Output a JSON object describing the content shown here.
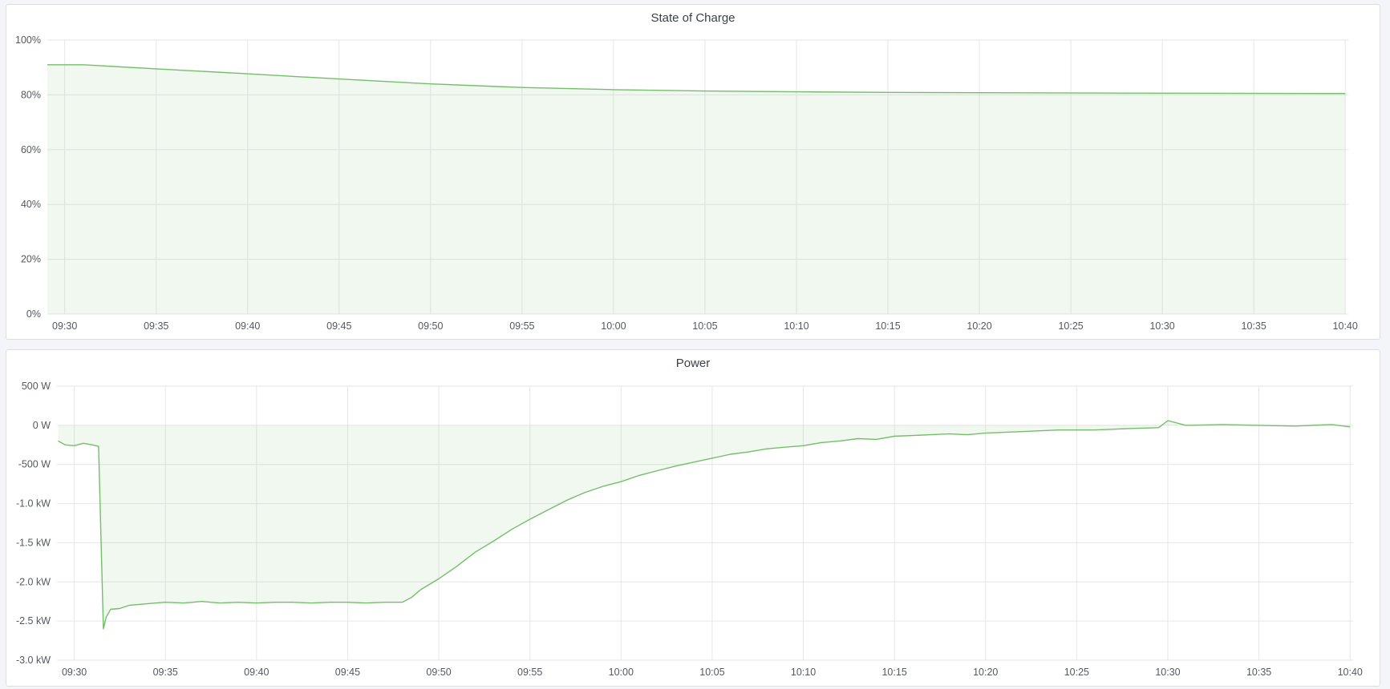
{
  "colors": {
    "line": "#73bf69",
    "fill": "#73bf69",
    "grid": "#e6e6e8",
    "background": "#f4f5f8"
  },
  "chart_data": [
    {
      "type": "area",
      "title": "State of Charge",
      "xlim": [
        "09:29:03",
        "10:40:10"
      ],
      "ylim": [
        0,
        100
      ],
      "xticks": [
        "09:30",
        "09:35",
        "09:40",
        "09:45",
        "09:50",
        "09:55",
        "10:00",
        "10:05",
        "10:10",
        "10:15",
        "10:20",
        "10:25",
        "10:30",
        "10:35",
        "10:40"
      ],
      "yticks": [
        {
          "v": 0,
          "label": "0%"
        },
        {
          "v": 20,
          "label": "20%"
        },
        {
          "v": 40,
          "label": "40%"
        },
        {
          "v": 60,
          "label": "60%"
        },
        {
          "v": 80,
          "label": "80%"
        },
        {
          "v": 100,
          "label": "100%"
        }
      ],
      "grid": true,
      "series": [
        {
          "x": [
            "09:29:03",
            "09:31:00",
            "09:35:00",
            "09:40:00",
            "09:45:00",
            "09:50:00",
            "09:55:00",
            "10:00:00",
            "10:05:00",
            "10:10:00",
            "10:15:00",
            "10:20:00",
            "10:30:00",
            "10:40:00"
          ],
          "y": [
            91,
            91,
            89.5,
            87.7,
            85.8,
            84.0,
            82.7,
            81.9,
            81.4,
            81.1,
            80.9,
            80.8,
            80.6,
            80.5
          ]
        }
      ]
    },
    {
      "type": "area",
      "title": "Power",
      "xlim": [
        "09:29:03",
        "10:40:10"
      ],
      "ylim": [
        -3000,
        500
      ],
      "xticks": [
        "09:30",
        "09:35",
        "09:40",
        "09:45",
        "09:50",
        "09:55",
        "10:00",
        "10:05",
        "10:10",
        "10:15",
        "10:20",
        "10:25",
        "10:30",
        "10:35",
        "10:40"
      ],
      "yticks": [
        {
          "v": 500,
          "label": "500 W"
        },
        {
          "v": 0,
          "label": "0 W"
        },
        {
          "v": -500,
          "label": "-500 W"
        },
        {
          "v": -1000,
          "label": "-1.0 kW"
        },
        {
          "v": -1500,
          "label": "-1.5 kW"
        },
        {
          "v": -2000,
          "label": "-2.0 kW"
        },
        {
          "v": -2500,
          "label": "-2.5 kW"
        },
        {
          "v": -3000,
          "label": "-3.0 kW"
        }
      ],
      "grid": true,
      "series": [
        {
          "x": [
            "09:29:07",
            "09:29:30",
            "09:30:00",
            "09:30:30",
            "09:31:00",
            "09:31:20",
            "09:31:36",
            "09:31:45",
            "09:32:00",
            "09:32:30",
            "09:33:00",
            "09:34:00",
            "09:35:00",
            "09:36:00",
            "09:37:00",
            "09:38:00",
            "09:39:00",
            "09:40:00",
            "09:41:00",
            "09:42:00",
            "09:43:00",
            "09:44:00",
            "09:45:00",
            "09:46:00",
            "09:47:00",
            "09:48:00",
            "09:48:30",
            "09:49:00",
            "09:50:00",
            "09:51:00",
            "09:52:00",
            "09:53:00",
            "09:54:00",
            "09:55:00",
            "09:56:00",
            "09:57:00",
            "09:58:00",
            "09:59:00",
            "10:00:00",
            "10:01:00",
            "10:02:00",
            "10:03:00",
            "10:04:00",
            "10:05:00",
            "10:06:00",
            "10:07:00",
            "10:08:00",
            "10:09:00",
            "10:10:00",
            "10:11:00",
            "10:12:00",
            "10:13:00",
            "10:14:00",
            "10:15:00",
            "10:16:00",
            "10:17:00",
            "10:18:00",
            "10:19:00",
            "10:20:00",
            "10:22:00",
            "10:24:00",
            "10:26:00",
            "10:28:00",
            "10:29:30",
            "10:30:00",
            "10:31:00",
            "10:33:00",
            "10:35:00",
            "10:37:00",
            "10:39:00",
            "10:40:00"
          ],
          "y": [
            -200,
            -250,
            -260,
            -230,
            -250,
            -270,
            -2600,
            -2450,
            -2350,
            -2340,
            -2300,
            -2280,
            -2260,
            -2270,
            -2250,
            -2270,
            -2260,
            -2270,
            -2260,
            -2260,
            -2270,
            -2260,
            -2260,
            -2270,
            -2260,
            -2260,
            -2200,
            -2100,
            -1960,
            -1800,
            -1620,
            -1480,
            -1330,
            -1200,
            -1080,
            -960,
            -860,
            -780,
            -720,
            -640,
            -580,
            -520,
            -470,
            -420,
            -370,
            -340,
            -300,
            -280,
            -260,
            -220,
            -200,
            -170,
            -180,
            -140,
            -130,
            -120,
            -110,
            -120,
            -100,
            -80,
            -60,
            -60,
            -40,
            -30,
            60,
            0,
            10,
            0,
            -10,
            10,
            -20
          ]
        }
      ]
    }
  ]
}
